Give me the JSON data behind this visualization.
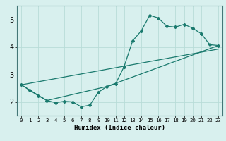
{
  "title": "",
  "xlabel": "Humidex (Indice chaleur)",
  "xlim": [
    -0.5,
    23.5
  ],
  "ylim": [
    1.5,
    5.5
  ],
  "xticks": [
    0,
    1,
    2,
    3,
    4,
    5,
    6,
    7,
    8,
    9,
    10,
    11,
    12,
    13,
    14,
    15,
    16,
    17,
    18,
    19,
    20,
    21,
    22,
    23
  ],
  "yticks": [
    2,
    3,
    4,
    5
  ],
  "bg_color": "#d8f0ee",
  "grid_color": "#b8dcd8",
  "line_color": "#1a7a6e",
  "line1_x": [
    0,
    1,
    2,
    3,
    4,
    5,
    6,
    7,
    8,
    9,
    10,
    11,
    12,
    13,
    14,
    15,
    16,
    17,
    18,
    19,
    20,
    21,
    22,
    23
  ],
  "line1_y": [
    2.62,
    2.42,
    2.22,
    2.05,
    1.97,
    2.02,
    2.0,
    1.82,
    1.88,
    2.35,
    2.56,
    2.65,
    3.28,
    4.22,
    4.58,
    5.15,
    5.05,
    4.75,
    4.72,
    4.82,
    4.68,
    4.48,
    4.08,
    4.05
  ],
  "line2_x": [
    0,
    3,
    10,
    23
  ],
  "line2_y": [
    2.62,
    2.05,
    2.56,
    4.05
  ],
  "line3_x": [
    0,
    23
  ],
  "line3_y": [
    2.62,
    3.92
  ]
}
